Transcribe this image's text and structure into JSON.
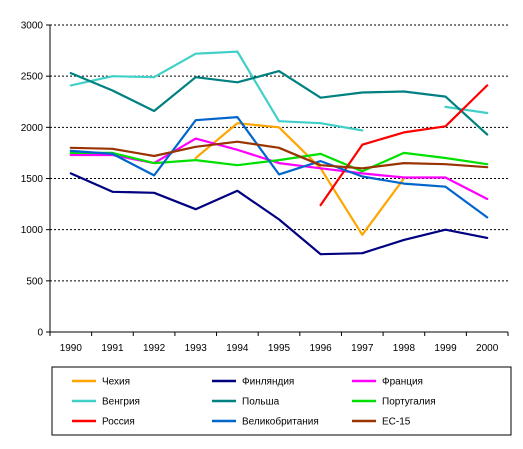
{
  "chart_data": {
    "type": "line",
    "title": "",
    "xlabel": "",
    "ylabel": "",
    "x": [
      "1990",
      "1991",
      "1992",
      "1993",
      "1994",
      "1995",
      "1996",
      "1997",
      "1998",
      "1999",
      "2000"
    ],
    "ylim": [
      0,
      3000
    ],
    "yticks": [
      0,
      500,
      1000,
      1500,
      2000,
      2500,
      3000
    ],
    "grid": "horizontal-dashed",
    "legend_position": "bottom",
    "series": [
      {
        "name": "Чехия",
        "color": "#FFA500",
        "values": [
          null,
          null,
          null,
          1700,
          2040,
          2000,
          1600,
          950,
          1500,
          null,
          null
        ]
      },
      {
        "name": "Финляндия",
        "color": "#000080",
        "values": [
          1550,
          1370,
          1360,
          1200,
          1380,
          1100,
          760,
          770,
          900,
          1000,
          920
        ]
      },
      {
        "name": "Франция",
        "color": "#FF00FF",
        "values": [
          1730,
          1730,
          1650,
          1890,
          1780,
          1650,
          1600,
          1550,
          1510,
          1510,
          1300
        ]
      },
      {
        "name": "Венгрия",
        "color": "#40D0C8",
        "values": [
          2410,
          2500,
          2490,
          2720,
          2740,
          2060,
          2040,
          1970,
          null,
          2200,
          2140
        ]
      },
      {
        "name": "Польша",
        "color": "#008080",
        "values": [
          2530,
          2360,
          2160,
          2490,
          2440,
          2550,
          2290,
          2340,
          2350,
          2300,
          1930
        ]
      },
      {
        "name": "Португалия",
        "color": "#00E000",
        "values": [
          1750,
          1750,
          1650,
          1680,
          1630,
          1680,
          1740,
          1570,
          1750,
          1700,
          1640
        ]
      },
      {
        "name": "Россия",
        "color": "#FF0000",
        "values": [
          null,
          null,
          null,
          null,
          null,
          null,
          1240,
          1830,
          1950,
          2010,
          2410
        ]
      },
      {
        "name": "Великобритания",
        "color": "#0066CC",
        "values": [
          1770,
          1740,
          1530,
          2070,
          2100,
          1540,
          1670,
          1520,
          1450,
          1420,
          1120
        ]
      },
      {
        "name": "ЕС-15",
        "color": "#993300",
        "values": [
          1800,
          1790,
          1720,
          1810,
          1860,
          1800,
          1630,
          1600,
          1650,
          1640,
          1610
        ]
      }
    ]
  }
}
